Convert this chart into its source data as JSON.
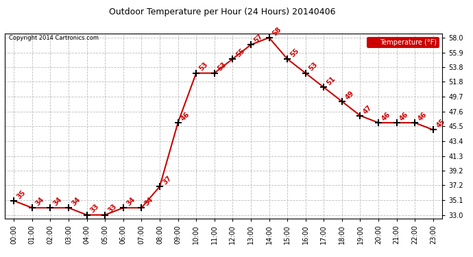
{
  "title": "Outdoor Temperature per Hour (24 Hours) 20140406",
  "copyright": "Copyright 2014 Cartronics.com",
  "legend_label": "Temperature (°F)",
  "hours": [
    0,
    1,
    2,
    3,
    4,
    5,
    6,
    7,
    8,
    9,
    10,
    11,
    12,
    13,
    14,
    15,
    16,
    17,
    18,
    19,
    20,
    21,
    22,
    23
  ],
  "temps": [
    35,
    34,
    34,
    34,
    33,
    33,
    34,
    34,
    37,
    46,
    53,
    53,
    55,
    57,
    58,
    55,
    53,
    51,
    49,
    47,
    46,
    46,
    46,
    45
  ],
  "line_color": "#cc0000",
  "marker_color": "#000000",
  "annotation_color": "#cc0000",
  "background_color": "#ffffff",
  "grid_color": "#bbbbbb",
  "yticks": [
    33.0,
    35.1,
    37.2,
    39.2,
    41.3,
    43.4,
    45.5,
    47.6,
    49.7,
    51.8,
    53.8,
    55.9,
    58.0
  ],
  "ylim": [
    32.5,
    58.6
  ],
  "xlim": [
    -0.5,
    23.5
  ],
  "title_fontsize": 9,
  "tick_fontsize": 7,
  "annotation_fontsize": 7
}
